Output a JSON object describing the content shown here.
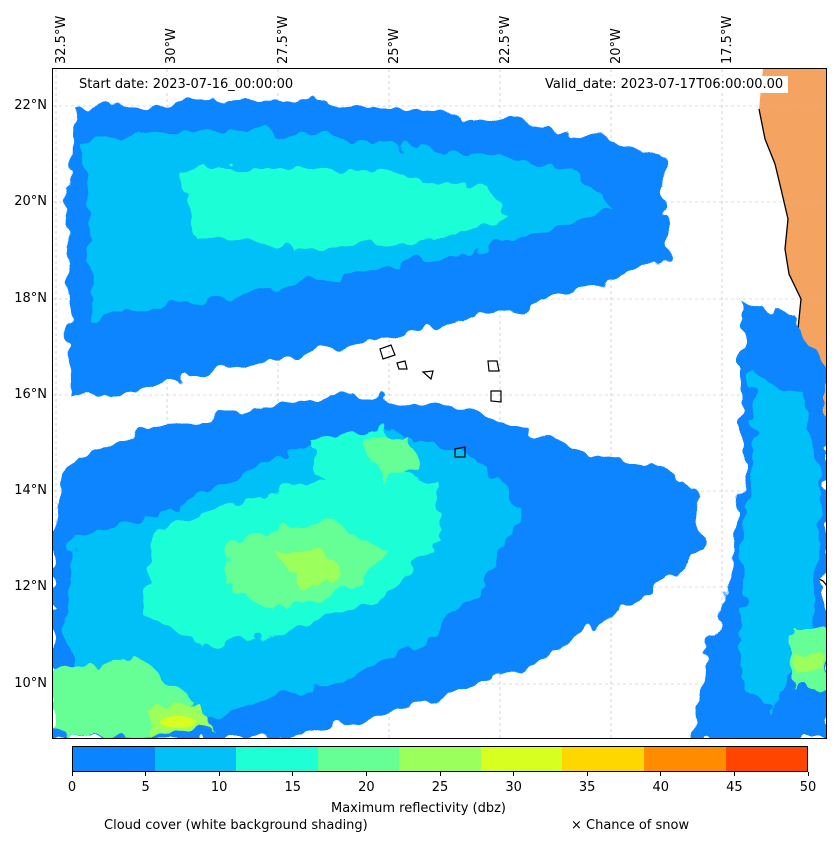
{
  "map": {
    "start_date": "Start date: 2023-07-16_00:00:00",
    "valid_date": "Valid_date: 2023-07-17T06:00:00.00",
    "lon_labels": [
      "32.5°W",
      "30°W",
      "27.5°W",
      "25°W",
      "22.5°W",
      "20°W",
      "17.5°W"
    ],
    "lat_labels": [
      "22°N",
      "20°N",
      "18°N",
      "16°N",
      "14°N",
      "12°N",
      "10°N"
    ],
    "land_color": "#f4a460",
    "coastline_color": "#000000"
  },
  "colorbar": {
    "label": "Maximum reflectivity (dbz)",
    "ticks": [
      "0",
      "5",
      "10",
      "15",
      "20",
      "25",
      "30",
      "35",
      "40",
      "45",
      "50"
    ],
    "colors": [
      "#0a85ff",
      "#04c0f8",
      "#1effd6",
      "#65ff95",
      "#9bff5c",
      "#d7ff1f",
      "#ffd700",
      "#ff8c00",
      "#ff4500"
    ]
  },
  "legend": {
    "cloud_cover": "Cloud cover (white background shading)",
    "snow": "× Chance of snow"
  }
}
